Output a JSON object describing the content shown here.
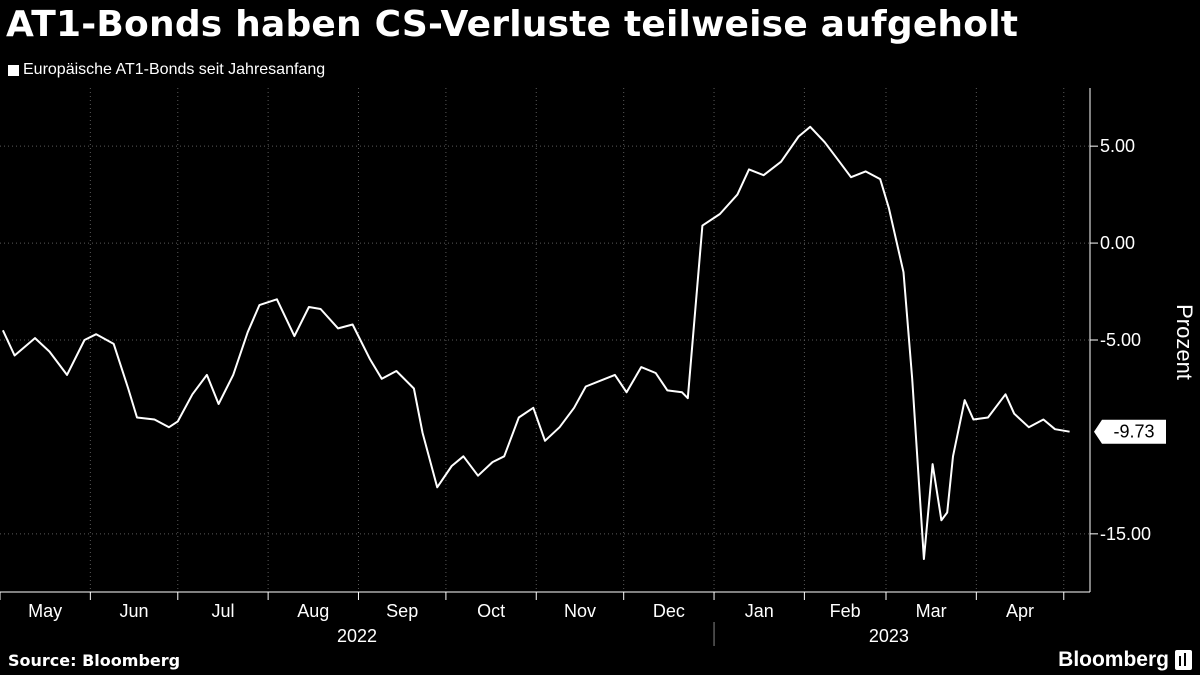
{
  "header": {
    "title": "AT1-Bonds haben CS-Verluste teilweise aufgeholt"
  },
  "footer": {
    "source": "Source: Bloomberg",
    "brand": "Bloomberg"
  },
  "colors": {
    "background": "#000000",
    "line": "#ffffff",
    "grid": "#5a5a5a"
  },
  "chart_data": {
    "type": "line",
    "title": "AT1-Bonds haben CS-Verluste teilweise aufgeholt",
    "ylabel": "Prozent",
    "ylim": [
      -18,
      8
    ],
    "yticks": [
      5,
      0,
      -5,
      -15
    ],
    "ytick_labels": [
      "5.00",
      "0.00",
      "-5.00",
      "-15.00"
    ],
    "grid": true,
    "legend_position": "top-left",
    "x_month_labels": [
      "May",
      "Jun",
      "Jul",
      "Aug",
      "Sep",
      "Oct",
      "Nov",
      "Dec",
      "Jan",
      "Feb",
      "Mar",
      "Apr"
    ],
    "x_year_labels": [
      "2022",
      "2023"
    ],
    "last_value_label": "-9.73",
    "series": [
      {
        "name": "Europäische AT1-Bonds seit Jahresanfang",
        "x": [
          "2022-05-02",
          "2022-05-06",
          "2022-05-13",
          "2022-05-18",
          "2022-05-24",
          "2022-05-30",
          "2022-06-03",
          "2022-06-09",
          "2022-06-14",
          "2022-06-17",
          "2022-06-23",
          "2022-06-28",
          "2022-07-01",
          "2022-07-06",
          "2022-07-11",
          "2022-07-15",
          "2022-07-20",
          "2022-07-25",
          "2022-07-29",
          "2022-08-04",
          "2022-08-10",
          "2022-08-15",
          "2022-08-19",
          "2022-08-25",
          "2022-08-30",
          "2022-09-05",
          "2022-09-09",
          "2022-09-14",
          "2022-09-20",
          "2022-09-23",
          "2022-09-28",
          "2022-10-03",
          "2022-10-07",
          "2022-10-12",
          "2022-10-17",
          "2022-10-21",
          "2022-10-26",
          "2022-10-31",
          "2022-11-04",
          "2022-11-09",
          "2022-11-14",
          "2022-11-18",
          "2022-11-23",
          "2022-11-28",
          "2022-12-02",
          "2022-12-07",
          "2022-12-12",
          "2022-12-16",
          "2022-12-21",
          "2022-12-23",
          "2022-12-28",
          "2023-01-03",
          "2023-01-09",
          "2023-01-13",
          "2023-01-18",
          "2023-01-24",
          "2023-01-30",
          "2023-02-03",
          "2023-02-08",
          "2023-02-13",
          "2023-02-17",
          "2023-02-22",
          "2023-02-27",
          "2023-03-02",
          "2023-03-07",
          "2023-03-10",
          "2023-03-14",
          "2023-03-17",
          "2023-03-20",
          "2023-03-22",
          "2023-03-24",
          "2023-03-28",
          "2023-03-31",
          "2023-04-05",
          "2023-04-11",
          "2023-04-14",
          "2023-04-19",
          "2023-04-24",
          "2023-04-28",
          "2023-05-03"
        ],
        "values": [
          -4.5,
          -5.8,
          -4.9,
          -5.6,
          -6.8,
          -5.0,
          -4.7,
          -5.2,
          -7.5,
          -9.0,
          -9.1,
          -9.5,
          -9.2,
          -7.8,
          -6.8,
          -8.3,
          -6.8,
          -4.6,
          -3.2,
          -2.9,
          -4.8,
          -3.3,
          -3.4,
          -4.4,
          -4.2,
          -6.0,
          -7.0,
          -6.6,
          -7.5,
          -9.8,
          -12.6,
          -11.5,
          -11.0,
          -12.0,
          -11.3,
          -11.0,
          -9.0,
          -8.5,
          -10.2,
          -9.5,
          -8.5,
          -7.4,
          -7.1,
          -6.8,
          -7.7,
          -6.4,
          -6.7,
          -7.6,
          -7.7,
          -8.0,
          0.9,
          1.5,
          2.5,
          3.8,
          3.5,
          4.2,
          5.5,
          6.0,
          5.2,
          4.2,
          3.4,
          3.7,
          3.3,
          1.8,
          -1.5,
          -7.0,
          -16.3,
          -11.4,
          -14.3,
          -13.9,
          -11.0,
          -8.1,
          -9.1,
          -9.0,
          -7.8,
          -8.8,
          -9.5,
          -9.1,
          -9.6,
          -9.73
        ]
      }
    ]
  }
}
